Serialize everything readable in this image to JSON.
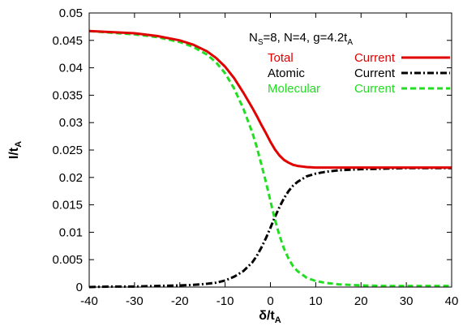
{
  "chart_data": {
    "type": "line",
    "xlabel_main": "δ/t",
    "xlabel_sub": "A",
    "ylabel_main": "I/t",
    "ylabel_sub": "A",
    "xlim": [
      -40,
      40
    ],
    "ylim": [
      0,
      0.05
    ],
    "x_ticks": [
      "-40",
      "-30",
      "-20",
      "-10",
      "0",
      "10",
      "20",
      "30",
      "40"
    ],
    "y_ticks": [
      "0",
      "0.005",
      "0.01",
      "0.015",
      "0.02",
      "0.025",
      "0.03",
      "0.035",
      "0.04",
      "0.045",
      "0.05"
    ],
    "grid": false,
    "legend_placement": "top-right",
    "annotation": {
      "p1": "N",
      "p1_sub": "S",
      "p2": "=8, N=4, g=4.2t",
      "p2_sub": "A"
    },
    "series": [
      {
        "name": "Total Current",
        "legend_left": "Total",
        "legend_right": "Current",
        "color": "#e00000",
        "dash": "solid",
        "x": [
          -40,
          -35,
          -30,
          -25,
          -20,
          -17,
          -14,
          -12,
          -10,
          -8,
          -6,
          -4,
          -3,
          -2,
          -1,
          0,
          1,
          2,
          3,
          4,
          5,
          6,
          8,
          10,
          12,
          15,
          20,
          25,
          30,
          35,
          40
        ],
        "y": [
          0.0467,
          0.0465,
          0.0463,
          0.0458,
          0.045,
          0.0442,
          0.043,
          0.0418,
          0.0402,
          0.0381,
          0.0355,
          0.0327,
          0.0312,
          0.0296,
          0.0281,
          0.0265,
          0.0251,
          0.024,
          0.0232,
          0.0227,
          0.0223,
          0.0221,
          0.0219,
          0.0218,
          0.0218,
          0.0218,
          0.0218,
          0.0218,
          0.0218,
          0.0218,
          0.0218
        ]
      },
      {
        "name": "Atomic Current",
        "legend_left": "Atomic",
        "legend_right": "Current",
        "color": "#000000",
        "dash": "dashdot",
        "x": [
          -40,
          -35,
          -30,
          -25,
          -20,
          -17,
          -14,
          -12,
          -10,
          -8,
          -6,
          -4,
          -3,
          -2,
          -1,
          0,
          1,
          2,
          3,
          4,
          5,
          6,
          8,
          10,
          12,
          15,
          20,
          25,
          30,
          35,
          40
        ],
        "y": [
          0.0,
          0.0001,
          0.0001,
          0.0002,
          0.0003,
          0.0004,
          0.0006,
          0.0008,
          0.0012,
          0.0019,
          0.0029,
          0.0045,
          0.0057,
          0.0072,
          0.0089,
          0.0108,
          0.0128,
          0.0146,
          0.0162,
          0.0175,
          0.0185,
          0.0192,
          0.0202,
          0.0207,
          0.021,
          0.0213,
          0.0215,
          0.0216,
          0.0217,
          0.0217,
          0.0217
        ]
      },
      {
        "name": "Molecular Current",
        "legend_left": "Molecular",
        "legend_right": "Current",
        "color": "#22dd22",
        "dash": "dashed",
        "x": [
          -40,
          -35,
          -30,
          -25,
          -20,
          -17,
          -14,
          -12,
          -10,
          -8,
          -6,
          -4,
          -3,
          -2,
          -1,
          0,
          1,
          2,
          3,
          4,
          5,
          6,
          8,
          10,
          12,
          15,
          20,
          25,
          30,
          35,
          40
        ],
        "y": [
          0.0467,
          0.0464,
          0.0461,
          0.0456,
          0.0447,
          0.0438,
          0.0424,
          0.041,
          0.039,
          0.0362,
          0.0326,
          0.0282,
          0.0255,
          0.0224,
          0.0192,
          0.0157,
          0.0123,
          0.0094,
          0.007,
          0.0052,
          0.0038,
          0.0029,
          0.0017,
          0.0011,
          0.0008,
          0.0005,
          0.0003,
          0.0002,
          0.0002,
          0.0002,
          0.0002
        ]
      }
    ]
  }
}
